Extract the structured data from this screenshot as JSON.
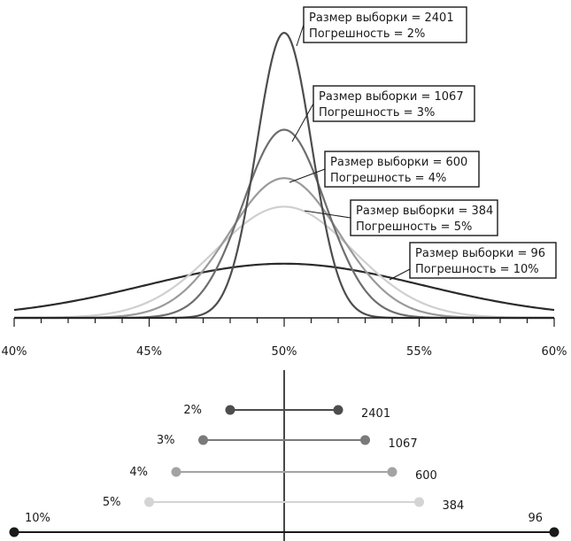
{
  "chart_data": [
    {
      "type": "line",
      "title": "",
      "xlabel": "",
      "ylabel": "",
      "xlim": [
        40,
        60
      ],
      "x_tick_labels": [
        "40%",
        "45%",
        "50%",
        "55%",
        "60%"
      ],
      "x_tick_values": [
        40,
        45,
        50,
        55,
        60
      ],
      "center": 50,
      "series": [
        {
          "name": "Размер выборки = 2401",
          "sample_size": 2401,
          "error_pct": 2,
          "stdev": 1.02,
          "peak": 1.0,
          "color": "#4d4d4d",
          "label_line1": "Размер выборки = 2401",
          "label_line2": "Погрешность = 2%"
        },
        {
          "name": "Размер выборки = 1067",
          "sample_size": 1067,
          "error_pct": 3,
          "stdev": 1.53,
          "peak": 0.66,
          "color": "#6e6e6e",
          "label_line1": "Размер выборки = 1067",
          "label_line2": "Погрешность = 3%"
        },
        {
          "name": "Размер выборки = 600",
          "sample_size": 600,
          "error_pct": 4,
          "stdev": 2.04,
          "peak": 0.49,
          "color": "#9a9a9a",
          "label_line1": "Размер выборки = 600",
          "label_line2": "Погрешность = 4%"
        },
        {
          "name": "Размер выборки = 384",
          "sample_size": 384,
          "error_pct": 5,
          "stdev": 2.55,
          "peak": 0.39,
          "color": "#cfcfcf",
          "label_line1": "Размер выборки = 384",
          "label_line2": "Погрешность = 5%"
        },
        {
          "name": "Размер выборки = 96",
          "sample_size": 96,
          "error_pct": 10,
          "stdev": 5.1,
          "peak": 0.19,
          "color": "#2b2b2b",
          "label_line1": "Размер выборки = 96",
          "label_line2": "Погрешность = 10%"
        }
      ]
    },
    {
      "type": "dumbbell",
      "title": "",
      "center": 50,
      "intervals": [
        {
          "error_label": "2%",
          "size_label": "2401",
          "low": 48,
          "high": 52,
          "color": "#4d4d4d"
        },
        {
          "error_label": "3%",
          "size_label": "1067",
          "low": 47,
          "high": 53,
          "color": "#7a7a7a"
        },
        {
          "error_label": "4%",
          "size_label": "600",
          "low": 46,
          "high": 54,
          "color": "#a3a3a3"
        },
        {
          "error_label": "5%",
          "size_label": "384",
          "low": 45,
          "high": 55,
          "color": "#d4d4d4"
        },
        {
          "error_label": "10%",
          "size_label": "96",
          "low": 40,
          "high": 60,
          "color": "#1a1a1a"
        }
      ]
    }
  ]
}
